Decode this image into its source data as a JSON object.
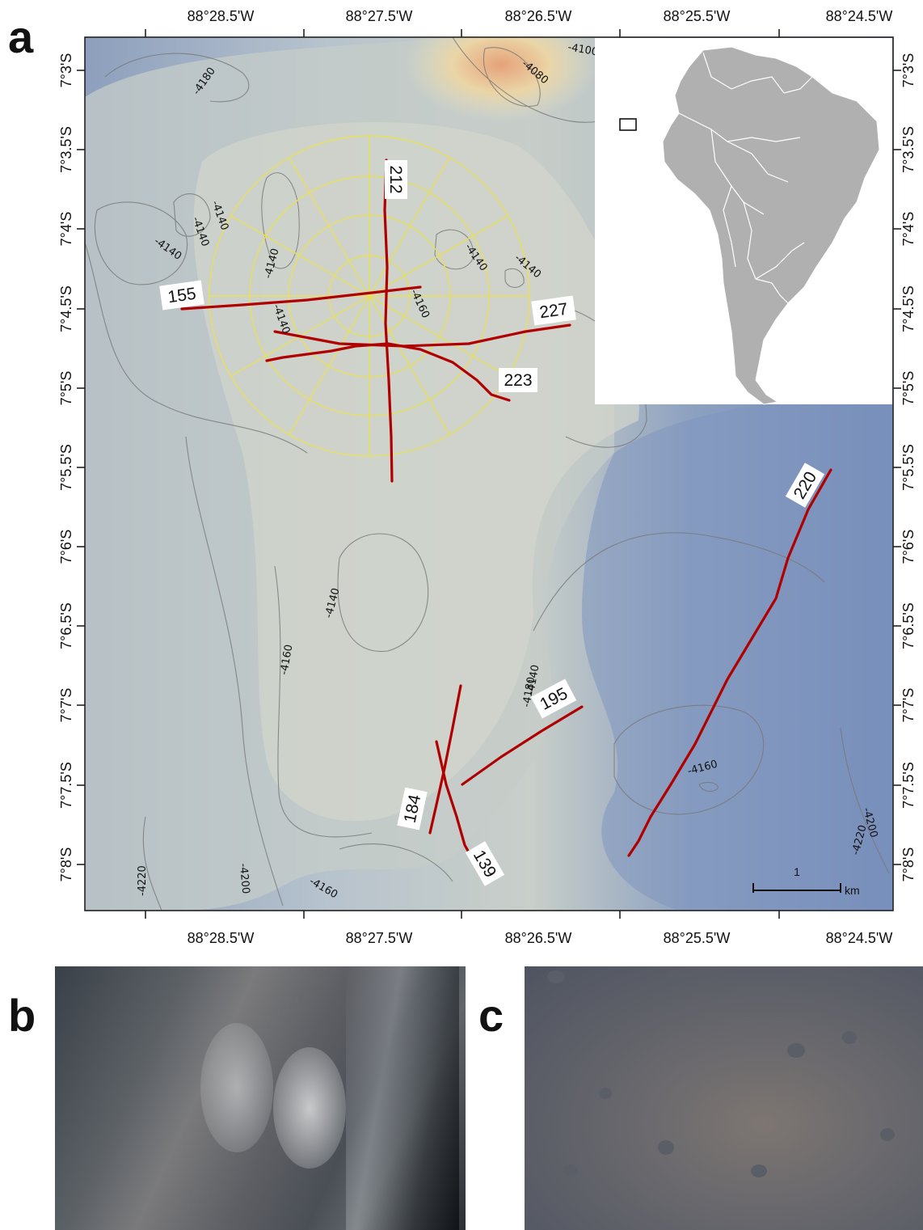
{
  "panels": {
    "a": "a",
    "b": "b",
    "c": "c"
  },
  "axes": {
    "x_ticks": [
      "88°28.5'W",
      "88°27.5'W",
      "88°26.5'W",
      "88°25.5'W",
      "88°24.5'W"
    ],
    "y_ticks": [
      "7°3'S",
      "7°3.5'S",
      "7°4'S",
      "7°4.5'S",
      "7°5'S",
      "7°5.5'S",
      "7°6'S",
      "7°6.5'S",
      "7°7'S",
      "7°7.5'S",
      "7°8'S"
    ]
  },
  "contour_labels": [
    "-4180",
    "-4100",
    "-4080",
    "-4140",
    "-4140",
    "-4140",
    "-4140",
    "-4140",
    "-4140",
    "-4140",
    "-4160",
    "-4140",
    "-4160",
    "-4140",
    "-4180",
    "-4160",
    "-4200",
    "-4220",
    "-4220",
    "-4200",
    "-4160"
  ],
  "transects": [
    {
      "label": "212"
    },
    {
      "label": "155"
    },
    {
      "label": "227"
    },
    {
      "label": "223"
    },
    {
      "label": "220"
    },
    {
      "label": "195"
    },
    {
      "label": "184"
    },
    {
      "label": "139"
    }
  ],
  "scale_bar": {
    "value": "1",
    "unit": "km"
  },
  "colors": {
    "transect": "#b00000",
    "radial_grid": "#e8df5a",
    "contour": "#777777"
  }
}
